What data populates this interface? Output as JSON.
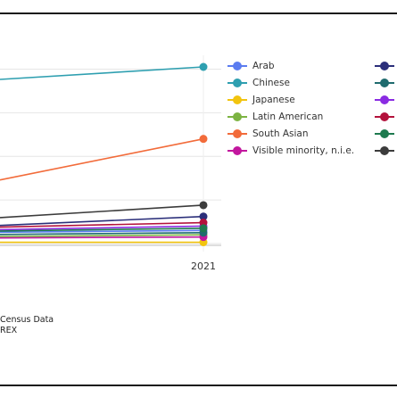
{
  "chart_data": {
    "type": "line",
    "x": [
      "2021"
    ],
    "xlabel": "",
    "ylabel": "",
    "grid": true,
    "legend_position": "right",
    "series": [
      {
        "name": "Arab",
        "color": "#5b7cf0",
        "values": [
          30
        ]
      },
      {
        "name": "Chinese",
        "color": "#2e9fb0",
        "values": [
          405
        ]
      },
      {
        "name": "Japanese",
        "color": "#f2c40f",
        "values": [
          3
        ]
      },
      {
        "name": "Latin American",
        "color": "#7cb342",
        "values": [
          20
        ]
      },
      {
        "name": "South Asian",
        "color": "#f26b3a",
        "values": [
          240
        ]
      },
      {
        "name": "Visible minority, n.i.e.",
        "color": "#c2179e",
        "values": [
          15
        ]
      },
      {
        "name": "",
        "color": "#2b2f7a",
        "values": [
          62
        ]
      },
      {
        "name": "",
        "color": "#1f6b6e",
        "values": [
          25
        ]
      },
      {
        "name": "",
        "color": "#8a2be2",
        "values": [
          40
        ]
      },
      {
        "name": "",
        "color": "#b3123c",
        "values": [
          48
        ]
      },
      {
        "name": "",
        "color": "#1e7a4f",
        "values": [
          35
        ]
      },
      {
        "name": "",
        "color": "#3c3c3c",
        "values": [
          88
        ]
      }
    ]
  },
  "source": {
    "line1": "Census Data",
    "line2": "REX"
  }
}
